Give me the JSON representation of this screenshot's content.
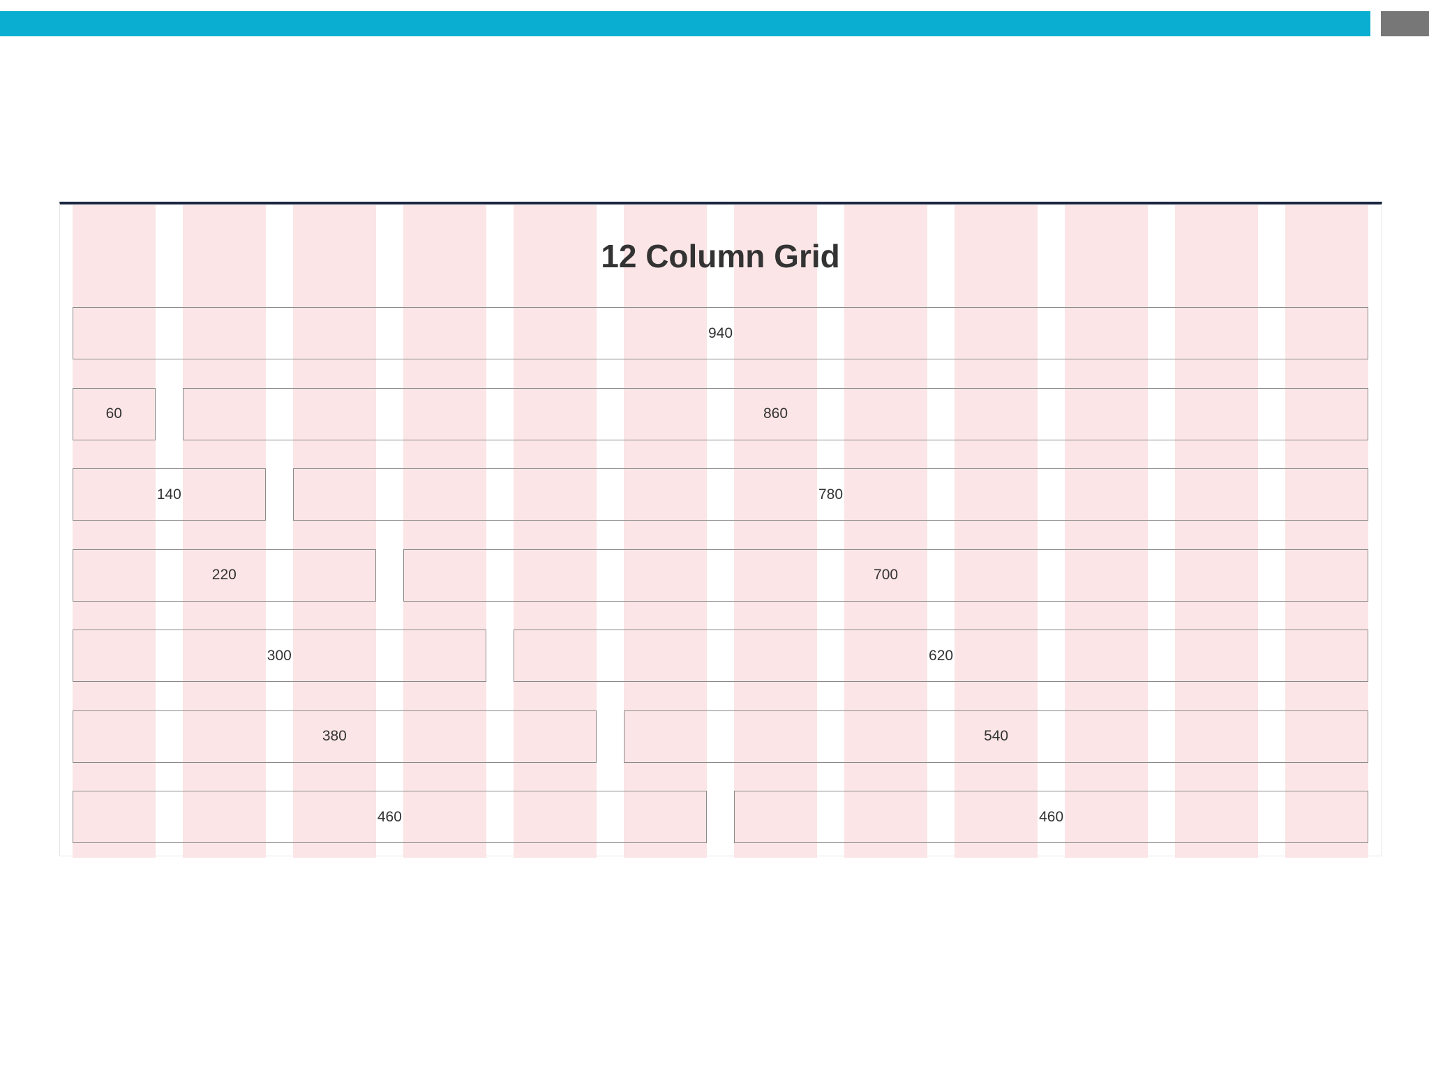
{
  "title": "12 Column Grid",
  "rows": [
    [
      940
    ],
    [
      60,
      860
    ],
    [
      140,
      780
    ],
    [
      220,
      700
    ],
    [
      300,
      620
    ],
    [
      380,
      540
    ],
    [
      460,
      460
    ]
  ]
}
